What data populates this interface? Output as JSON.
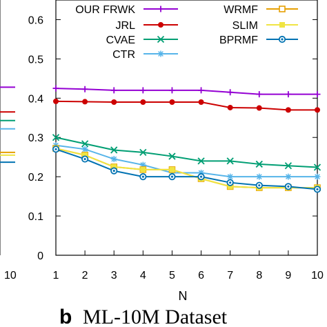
{
  "left_panel_fragment": {
    "tick_label": "10",
    "series_values": [
      {
        "name": "OUR FRWK",
        "value": 0.428
      },
      {
        "name": "JRL",
        "value": 0.365
      },
      {
        "name": "CVAE",
        "value": 0.343
      },
      {
        "name": "CTR",
        "value": 0.322
      },
      {
        "name": "WRMF",
        "value": 0.262
      },
      {
        "name": "SLIM",
        "value": 0.255
      },
      {
        "name": "BPRMF",
        "value": 0.237
      }
    ]
  },
  "caption": {
    "letter": "b",
    "text": "ML-10M Dataset"
  },
  "chart_data": {
    "type": "line",
    "xlabel": "N",
    "ylabel": "",
    "x": [
      1,
      2,
      3,
      4,
      5,
      6,
      7,
      8,
      9,
      10
    ],
    "xlim": [
      1,
      10
    ],
    "ylim": [
      0,
      0.65
    ],
    "yticks": [
      "0",
      "0.1",
      "0.2",
      "0.3",
      "0.4",
      "0.5",
      "0.6"
    ],
    "xticks": [
      "1",
      "2",
      "3",
      "4",
      "5",
      "6",
      "7",
      "8",
      "9",
      "10"
    ],
    "grid": false,
    "legend_placement": "top",
    "series": [
      {
        "name": "OUR FRWK",
        "color": "#9400d3",
        "marker": "plus",
        "values": [
          0.425,
          0.423,
          0.42,
          0.42,
          0.42,
          0.42,
          0.415,
          0.41,
          0.41,
          0.41
        ]
      },
      {
        "name": "JRL",
        "color": "#cc0000",
        "marker": "circle",
        "values": [
          0.392,
          0.391,
          0.39,
          0.39,
          0.39,
          0.39,
          0.376,
          0.375,
          0.37,
          0.37
        ]
      },
      {
        "name": "CVAE",
        "color": "#009e73",
        "marker": "x",
        "values": [
          0.3,
          0.284,
          0.268,
          0.262,
          0.252,
          0.24,
          0.24,
          0.232,
          0.228,
          0.224
        ]
      },
      {
        "name": "CTR",
        "color": "#56b4e9",
        "marker": "star",
        "values": [
          0.28,
          0.27,
          0.245,
          0.23,
          0.21,
          0.21,
          0.2,
          0.2,
          0.2,
          0.2
        ]
      },
      {
        "name": "WRMF",
        "color": "#e69f00",
        "marker": "square-open",
        "values": [
          0.272,
          0.255,
          0.225,
          0.218,
          0.218,
          0.195,
          0.175,
          0.172,
          0.172,
          0.172
        ]
      },
      {
        "name": "SLIM",
        "color": "#f0e442",
        "marker": "square-filled",
        "values": [
          0.272,
          0.255,
          0.225,
          0.218,
          0.218,
          0.195,
          0.175,
          0.172,
          0.172,
          0.172
        ]
      },
      {
        "name": "BPRMF",
        "color": "#0072b2",
        "marker": "circle-dot",
        "values": [
          0.27,
          0.245,
          0.215,
          0.2,
          0.2,
          0.2,
          0.185,
          0.178,
          0.175,
          0.168
        ]
      }
    ]
  }
}
